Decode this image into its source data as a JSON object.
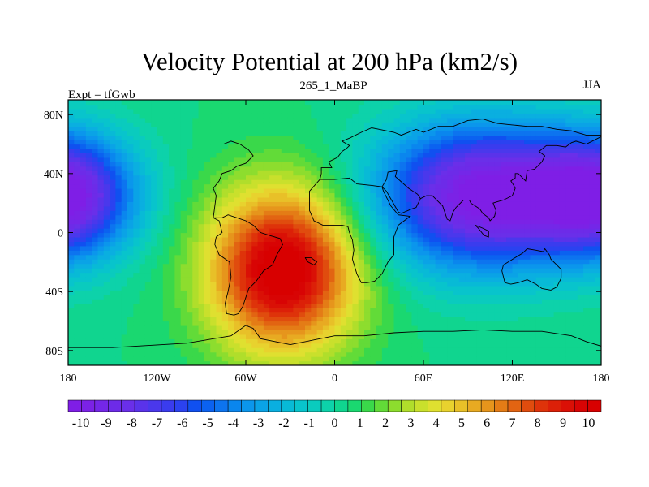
{
  "chart_data": {
    "type": "heatmap",
    "title": "Velocity Potential at 200 hPa (km2/s)",
    "left_string": "Expt = tfGwb",
    "center_string": "265_1_MaBP",
    "right_string": "JJA",
    "xlim": [
      -180,
      180
    ],
    "ylim": [
      -90,
      90
    ],
    "x_ticks": [
      {
        "value": -180,
        "label": "180"
      },
      {
        "value": -120,
        "label": "120W"
      },
      {
        "value": -60,
        "label": "60W"
      },
      {
        "value": 0,
        "label": "0"
      },
      {
        "value": 60,
        "label": "60E"
      },
      {
        "value": 120,
        "label": "120E"
      },
      {
        "value": 180,
        "label": "180"
      }
    ],
    "y_ticks": [
      {
        "value": 80,
        "label": "80N"
      },
      {
        "value": 40,
        "label": "40N"
      },
      {
        "value": 0,
        "label": "0"
      },
      {
        "value": -40,
        "label": "40S"
      },
      {
        "value": -80,
        "label": "80S"
      }
    ],
    "field_centers": [
      {
        "name": "positive-max",
        "lon": -35,
        "lat": -25,
        "value": 10.5,
        "lon_radius": 50,
        "lat_radius": 55
      },
      {
        "name": "negative-max",
        "lon": 100,
        "lat": 25,
        "value": -11,
        "lon_radius": 70,
        "lat_radius": 48
      },
      {
        "name": "negative-secondary",
        "lon": -180,
        "lat": 25,
        "value": -9,
        "lon_radius": 45,
        "lat_radius": 40
      }
    ],
    "colorbar": {
      "labels": [
        "-10",
        "-9",
        "-8",
        "-7",
        "-6",
        "-5",
        "-4",
        "-3",
        "-2",
        "-1",
        "0",
        "1",
        "2",
        "3",
        "4",
        "5",
        "6",
        "7",
        "8",
        "9",
        "10"
      ],
      "min": -10.5,
      "max": 10.5,
      "colors": [
        "#7f1ee6",
        "#7b22e6",
        "#7427e8",
        "#6d2be8",
        "#6a2fe9",
        "#5a33ea",
        "#4a38ec",
        "#3a3cee",
        "#2b42f0",
        "#1050f0",
        "#0b62f0",
        "#0d74ef",
        "#0a86ee",
        "#0b96ec",
        "#0aa3e6",
        "#0aafe0",
        "#08bad6",
        "#08c4cc",
        "#0acbbe",
        "#0dd2aa",
        "#10d58f",
        "#1ad870",
        "#3ad84a",
        "#62db38",
        "#8ddd2e",
        "#b0de2b",
        "#c9e02c",
        "#dfe030",
        "#e8d22e",
        "#e8c028",
        "#e8aa22",
        "#e6951c",
        "#e47c16",
        "#e26412",
        "#e04c0e",
        "#de330a",
        "#dc2008",
        "#da1006",
        "#d80404",
        "#d80000"
      ]
    },
    "coastlines": [
      [
        [
          -82,
          10
        ],
        [
          -80,
          25
        ],
        [
          -82,
          30
        ],
        [
          -78,
          35
        ],
        [
          -76,
          40
        ],
        [
          -70,
          42
        ],
        [
          -66,
          45
        ],
        [
          -60,
          47
        ],
        [
          -55,
          52
        ],
        [
          -58,
          56
        ],
        [
          -64,
          60
        ],
        [
          -70,
          62
        ],
        [
          -75,
          60
        ]
      ],
      [
        [
          -82,
          10
        ],
        [
          -78,
          8
        ],
        [
          -76,
          0
        ],
        [
          -80,
          -3
        ],
        [
          -81,
          -8
        ],
        [
          -78,
          -15
        ],
        [
          -71,
          -20
        ],
        [
          -70,
          -30
        ],
        [
          -72,
          -40
        ],
        [
          -74,
          -48
        ],
        [
          -73,
          -55
        ],
        [
          -68,
          -56
        ],
        [
          -65,
          -55
        ],
        [
          -62,
          -50
        ],
        [
          -58,
          -38
        ],
        [
          -53,
          -33
        ],
        [
          -48,
          -26
        ],
        [
          -42,
          -22
        ],
        [
          -39,
          -15
        ],
        [
          -35,
          -8
        ],
        [
          -37,
          -4
        ],
        [
          -44,
          -2
        ],
        [
          -50,
          0
        ],
        [
          -55,
          5
        ],
        [
          -60,
          8
        ],
        [
          -66,
          10
        ],
        [
          -72,
          12
        ],
        [
          -76,
          10
        ],
        [
          -82,
          10
        ]
      ],
      [
        [
          -10,
          36
        ],
        [
          -17,
          28
        ],
        [
          -17,
          15
        ],
        [
          -14,
          8
        ],
        [
          -8,
          5
        ],
        [
          0,
          5
        ],
        [
          5,
          5
        ],
        [
          9,
          4
        ],
        [
          10,
          0
        ],
        [
          12,
          -5
        ],
        [
          13,
          -12
        ],
        [
          12,
          -18
        ],
        [
          15,
          -28
        ],
        [
          18,
          -34
        ],
        [
          22,
          -34
        ],
        [
          27,
          -33
        ],
        [
          32,
          -28
        ],
        [
          36,
          -20
        ],
        [
          40,
          -15
        ],
        [
          40,
          -8
        ],
        [
          40,
          -3
        ],
        [
          43,
          5
        ],
        [
          51,
          11
        ],
        [
          43,
          12
        ],
        [
          38,
          18
        ],
        [
          33,
          28
        ],
        [
          32,
          31
        ],
        [
          25,
          32
        ],
        [
          15,
          33
        ],
        [
          10,
          37
        ],
        [
          0,
          36
        ],
        [
          -6,
          36
        ],
        [
          -10,
          36
        ]
      ],
      [
        [
          -10,
          36
        ],
        [
          -9,
          40
        ],
        [
          -9,
          44
        ],
        [
          -2,
          44
        ],
        [
          -4,
          48
        ],
        [
          2,
          51
        ],
        [
          5,
          55
        ],
        [
          8,
          57
        ],
        [
          10,
          59
        ],
        [
          5,
          62
        ],
        [
          10,
          64
        ],
        [
          18,
          68
        ],
        [
          25,
          71
        ],
        [
          30,
          70
        ],
        [
          40,
          68
        ],
        [
          45,
          66
        ],
        [
          55,
          70
        ],
        [
          60,
          68
        ],
        [
          70,
          72
        ],
        [
          80,
          72
        ],
        [
          90,
          76
        ],
        [
          100,
          77
        ],
        [
          110,
          74
        ],
        [
          120,
          73
        ],
        [
          130,
          72
        ],
        [
          140,
          72
        ],
        [
          150,
          70
        ],
        [
          160,
          69
        ],
        [
          170,
          66
        ],
        [
          180,
          66
        ]
      ],
      [
        [
          32,
          31
        ],
        [
          35,
          36
        ],
        [
          36,
          41
        ],
        [
          42,
          42
        ],
        [
          41,
          38
        ],
        [
          50,
          30
        ],
        [
          56,
          26
        ],
        [
          58,
          23
        ],
        [
          55,
          17
        ],
        [
          52,
          16
        ],
        [
          45,
          13
        ],
        [
          43,
          14
        ],
        [
          39,
          21
        ],
        [
          35,
          28
        ],
        [
          32,
          31
        ]
      ],
      [
        [
          58,
          23
        ],
        [
          62,
          25
        ],
        [
          66,
          25
        ],
        [
          70,
          21
        ],
        [
          73,
          18
        ],
        [
          76,
          9
        ],
        [
          78,
          8
        ],
        [
          80,
          14
        ],
        [
          82,
          17
        ],
        [
          87,
          22
        ],
        [
          91,
          22
        ],
        [
          92,
          20
        ],
        [
          98,
          16
        ],
        [
          100,
          13
        ],
        [
          104,
          10
        ],
        [
          105,
          8
        ],
        [
          108,
          11
        ],
        [
          109,
          15
        ],
        [
          107,
          20
        ],
        [
          110,
          21
        ],
        [
          114,
          22
        ],
        [
          120,
          25
        ],
        [
          122,
          30
        ],
        [
          121,
          32
        ],
        [
          119,
          35
        ],
        [
          122,
          37
        ],
        [
          122,
          40
        ],
        [
          124,
          40
        ],
        [
          127,
          37
        ],
        [
          129,
          35
        ],
        [
          130,
          42
        ],
        [
          135,
          43
        ],
        [
          140,
          48
        ],
        [
          142,
          52
        ],
        [
          138,
          55
        ],
        [
          143,
          59
        ],
        [
          150,
          59
        ],
        [
          156,
          58
        ],
        [
          160,
          61
        ],
        [
          163,
          62
        ],
        [
          170,
          60
        ],
        [
          178,
          64
        ],
        [
          180,
          65
        ]
      ],
      [
        [
          95,
          5
        ],
        [
          100,
          3
        ],
        [
          104,
          1
        ],
        [
          104,
          -3
        ],
        [
          101,
          -2
        ],
        [
          97,
          3
        ],
        [
          95,
          5
        ]
      ],
      [
        [
          114,
          -22
        ],
        [
          113,
          -26
        ],
        [
          115,
          -34
        ],
        [
          119,
          -35
        ],
        [
          124,
          -34
        ],
        [
          130,
          -32
        ],
        [
          136,
          -35
        ],
        [
          140,
          -38
        ],
        [
          146,
          -39
        ],
        [
          150,
          -37
        ],
        [
          153,
          -31
        ],
        [
          153,
          -25
        ],
        [
          149,
          -21
        ],
        [
          146,
          -18
        ],
        [
          145,
          -15
        ],
        [
          142,
          -11
        ],
        [
          141,
          -13
        ],
        [
          136,
          -12
        ],
        [
          130,
          -11
        ],
        [
          127,
          -14
        ],
        [
          122,
          -17
        ],
        [
          114,
          -22
        ]
      ],
      [
        [
          -20,
          -17
        ],
        [
          -18,
          -20
        ],
        [
          -14,
          -22
        ],
        [
          -12,
          -20
        ],
        [
          -16,
          -17
        ],
        [
          -20,
          -17
        ]
      ],
      [
        [
          -180,
          -78
        ],
        [
          -150,
          -78
        ],
        [
          -100,
          -75
        ],
        [
          -70,
          -70
        ],
        [
          -60,
          -63
        ],
        [
          -55,
          -65
        ],
        [
          -50,
          -72
        ],
        [
          -30,
          -76
        ],
        [
          0,
          -70
        ],
        [
          20,
          -70
        ],
        [
          40,
          -68
        ],
        [
          60,
          -67
        ],
        [
          80,
          -67
        ],
        [
          100,
          -66
        ],
        [
          120,
          -67
        ],
        [
          140,
          -67
        ],
        [
          160,
          -70
        ],
        [
          170,
          -74
        ],
        [
          180,
          -77
        ]
      ]
    ]
  }
}
